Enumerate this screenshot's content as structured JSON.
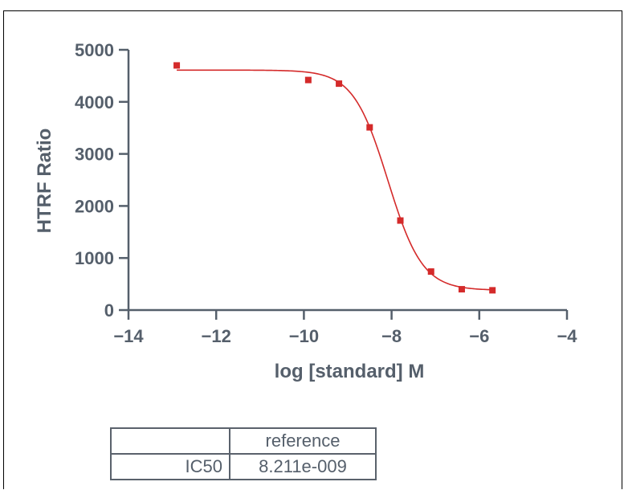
{
  "chart_data": {
    "type": "scatter",
    "title": "",
    "xlabel": "log [standard] M",
    "ylabel": "HTRF Ratio",
    "xlim": [
      -14,
      -4
    ],
    "ylim": [
      0,
      5000
    ],
    "xticks": [
      -14,
      -12,
      -10,
      -8,
      -6,
      -4
    ],
    "yticks": [
      0,
      1000,
      2000,
      3000,
      4000,
      5000
    ],
    "points": [
      {
        "x": -12.9,
        "y": 4700
      },
      {
        "x": -9.9,
        "y": 4420
      },
      {
        "x": -9.2,
        "y": 4350
      },
      {
        "x": -8.5,
        "y": 3510
      },
      {
        "x": -7.8,
        "y": 1720
      },
      {
        "x": -7.1,
        "y": 740
      },
      {
        "x": -6.4,
        "y": 400
      },
      {
        "x": -5.7,
        "y": 380
      }
    ],
    "fit": {
      "model": "4PL",
      "top": 4610,
      "bottom": 380,
      "logIC50": -8.086,
      "hill": -1.1
    },
    "color": "#d42a2a"
  },
  "table": {
    "header": [
      "",
      "reference"
    ],
    "rows": [
      [
        "IC50",
        "8.211e-009"
      ]
    ]
  }
}
